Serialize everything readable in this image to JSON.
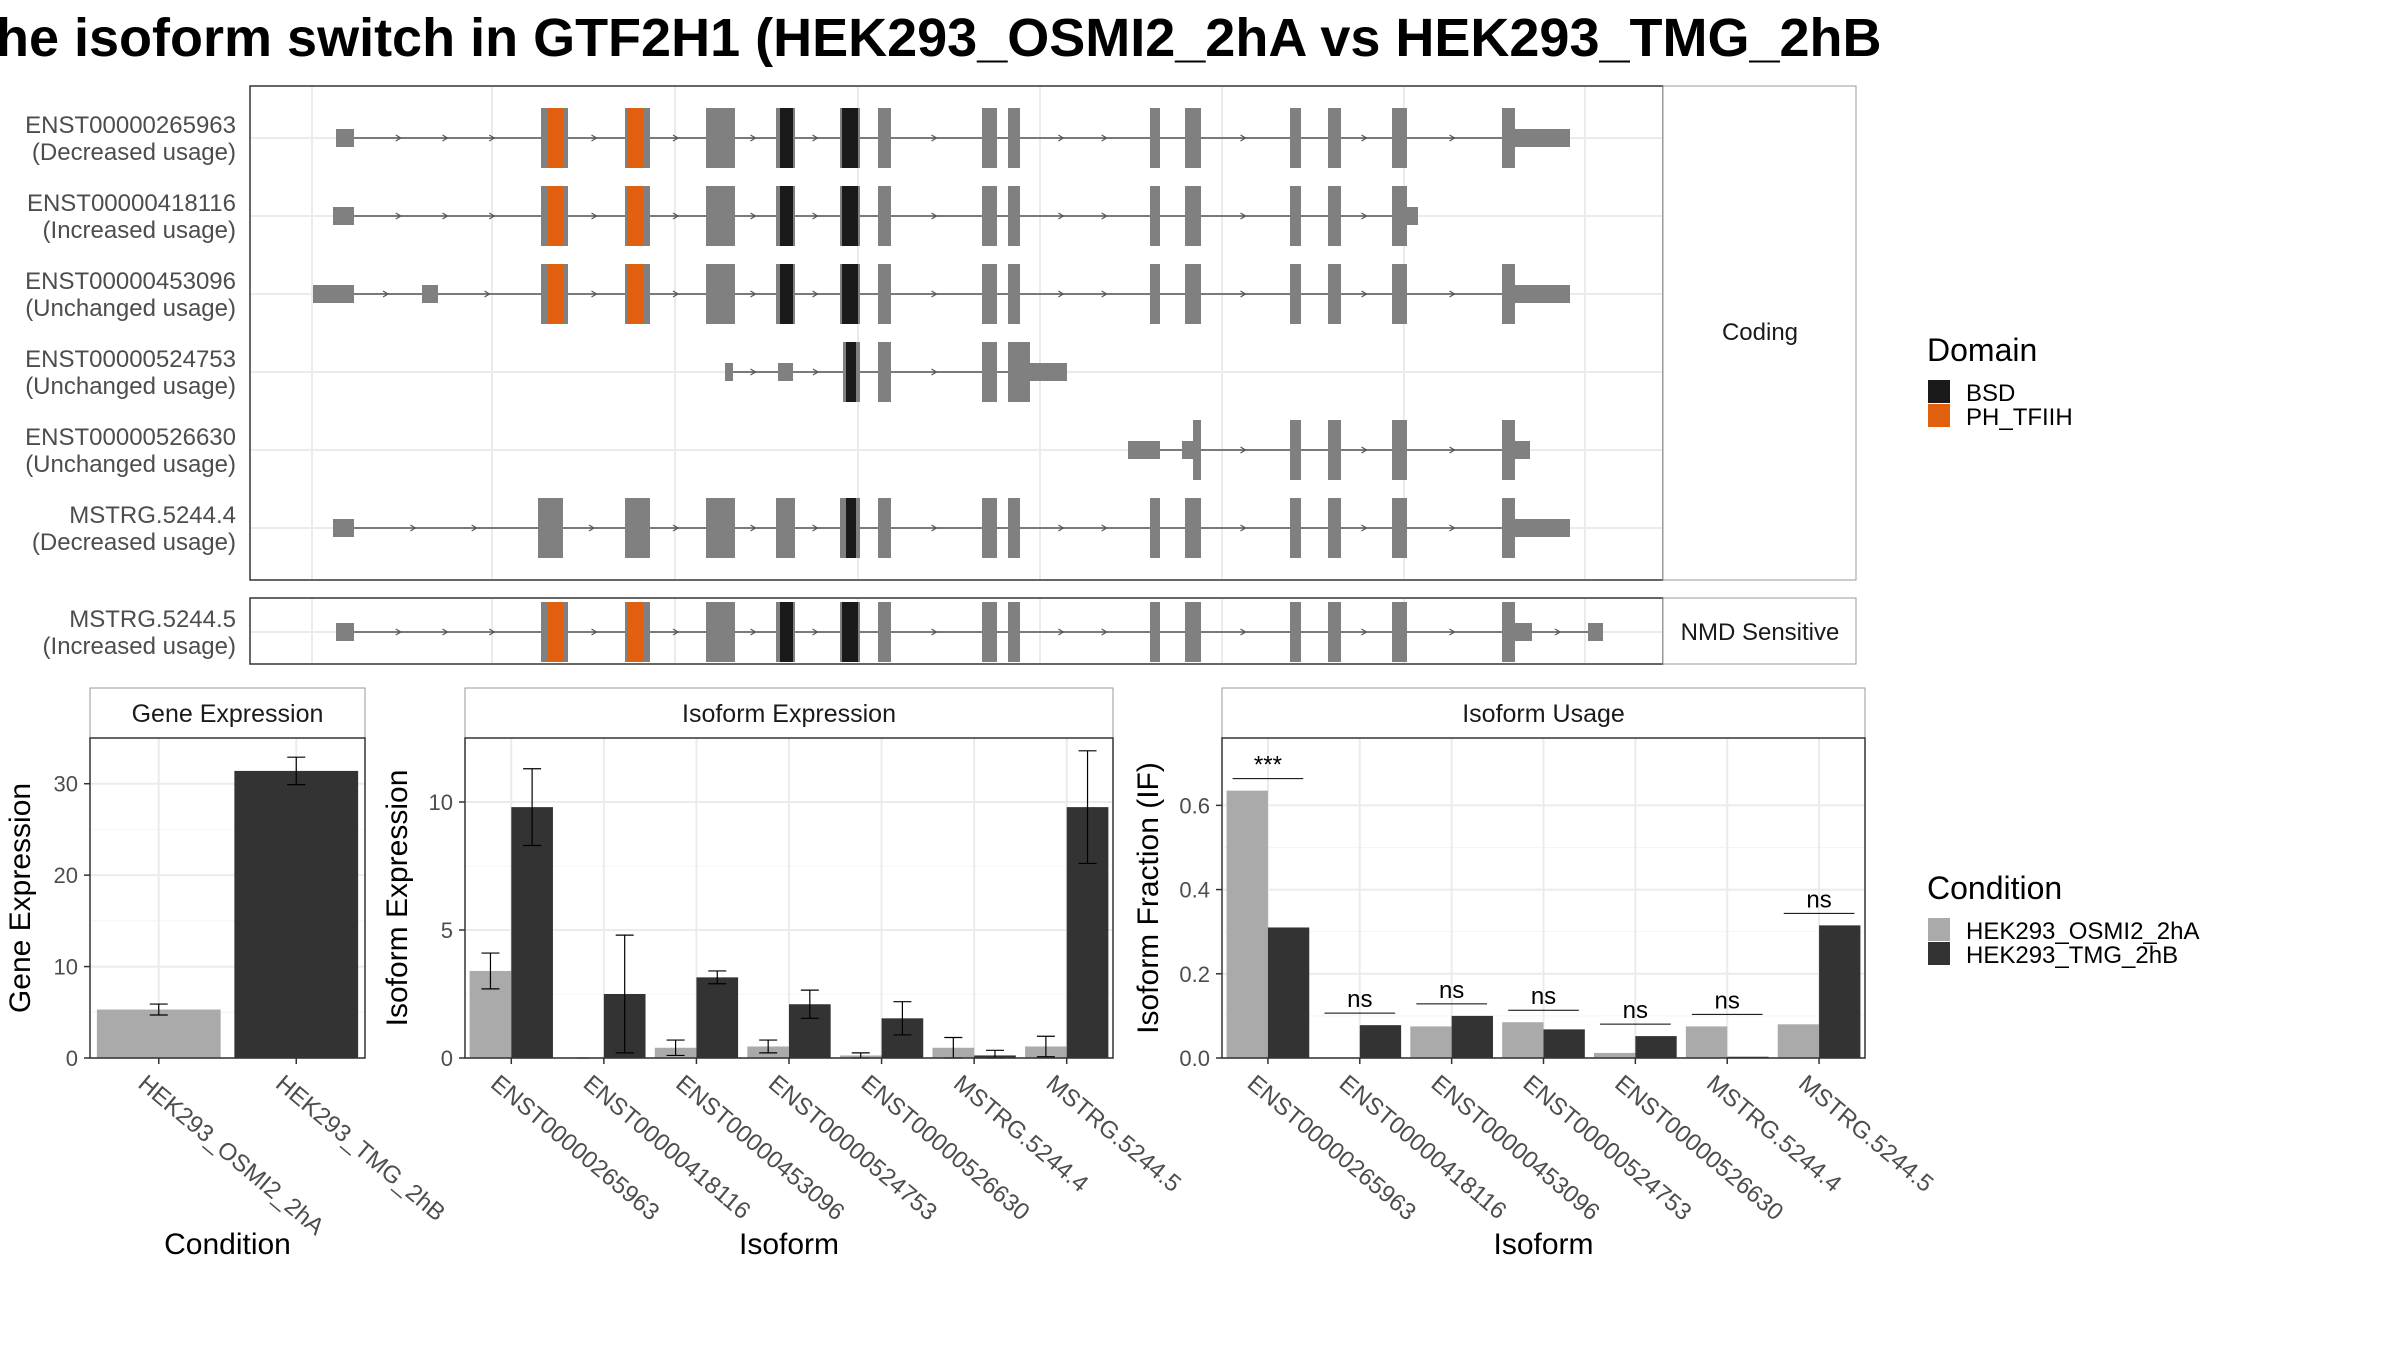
{
  "title": "he isoform switch in GTF2H1 (HEK293_OSMI2_2hA vs HEK293_TMG_2hB",
  "structure": {
    "groups": [
      {
        "label": "Coding",
        "transcripts": [
          0,
          1,
          2,
          3,
          4,
          5
        ]
      },
      {
        "label": "NMD Sensitive",
        "transcripts": [
          6
        ]
      }
    ],
    "transcripts": [
      {
        "id": "ENST00000265963",
        "usage": "(Decreased usage)"
      },
      {
        "id": "ENST00000418116",
        "usage": "(Increased usage)"
      },
      {
        "id": "ENST00000453096",
        "usage": "(Unchanged usage)"
      },
      {
        "id": "ENST00000524753",
        "usage": "(Unchanged usage)"
      },
      {
        "id": "ENST00000526630",
        "usage": "(Unchanged usage)"
      },
      {
        "id": "MSTRG.5244.4",
        "usage": "(Decreased usage)"
      },
      {
        "id": "MSTRG.5244.5",
        "usage": "(Increased usage)"
      }
    ],
    "domain_legend": {
      "title": "Domain",
      "items": [
        {
          "label": "BSD",
          "color": "#1a1a1a"
        },
        {
          "label": "PH_TFIIH",
          "color": "#e06010"
        }
      ]
    },
    "colors": {
      "exon": "#808080",
      "intron": "#555555"
    }
  },
  "chart_data": [
    {
      "type": "bar",
      "title": "Gene Expression",
      "xlabel": "Condition",
      "ylabel": "Gene Expression",
      "ylim": [
        0,
        35
      ],
      "yticks": [
        0,
        10,
        20,
        30
      ],
      "categories": [
        "HEK293_OSMI2_2hA",
        "HEK293_TMG_2hB"
      ],
      "values": [
        5.3,
        31.4
      ],
      "errors": [
        0.6,
        1.5
      ],
      "colors": [
        "#aaaaaa",
        "#333333"
      ]
    },
    {
      "type": "bar",
      "title": "Isoform Expression",
      "xlabel": "Isoform",
      "ylabel": "Isoform Expression",
      "ylim": [
        0,
        12.5
      ],
      "yticks": [
        0,
        5,
        10
      ],
      "categories": [
        "ENST00000265963",
        "ENST00000418116",
        "ENST00000453096",
        "ENST00000524753",
        "ENST00000526630",
        "MSTRG.5244.4",
        "MSTRG.5244.5"
      ],
      "series": [
        {
          "name": "HEK293_OSMI2_2hA",
          "values": [
            3.4,
            0.0,
            0.4,
            0.45,
            0.1,
            0.4,
            0.45
          ],
          "errors": [
            0.7,
            0.0,
            0.3,
            0.25,
            0.1,
            0.4,
            0.4
          ]
        },
        {
          "name": "HEK293_TMG_2hB",
          "values": [
            9.8,
            2.5,
            3.15,
            2.1,
            1.55,
            0.1,
            9.8
          ],
          "errors": [
            1.5,
            2.3,
            0.25,
            0.55,
            0.65,
            0.2,
            2.2
          ]
        }
      ]
    },
    {
      "type": "bar",
      "title": "Isoform Usage",
      "xlabel": "Isoform",
      "ylabel": "Isoform Fraction (IF)",
      "ylim": [
        0,
        0.76
      ],
      "yticks": [
        0.0,
        0.2,
        0.4,
        0.6
      ],
      "categories": [
        "ENST00000265963",
        "ENST00000418116",
        "ENST00000453096",
        "ENST00000524753",
        "ENST00000526630",
        "MSTRG.5244.4",
        "MSTRG.5244.5"
      ],
      "series": [
        {
          "name": "HEK293_OSMI2_2hA",
          "values": [
            0.635,
            0.0,
            0.075,
            0.085,
            0.012,
            0.075,
            0.08
          ]
        },
        {
          "name": "HEK293_TMG_2hB",
          "values": [
            0.31,
            0.078,
            0.1,
            0.068,
            0.052,
            0.003,
            0.315
          ]
        }
      ],
      "significance": [
        "***",
        "ns",
        "ns",
        "ns",
        "ns",
        "ns",
        "ns"
      ]
    }
  ],
  "condition_legend": {
    "title": "Condition",
    "items": [
      {
        "label": "HEK293_OSMI2_2hA",
        "color": "#aaaaaa"
      },
      {
        "label": "HEK293_TMG_2hB",
        "color": "#333333"
      }
    ]
  }
}
